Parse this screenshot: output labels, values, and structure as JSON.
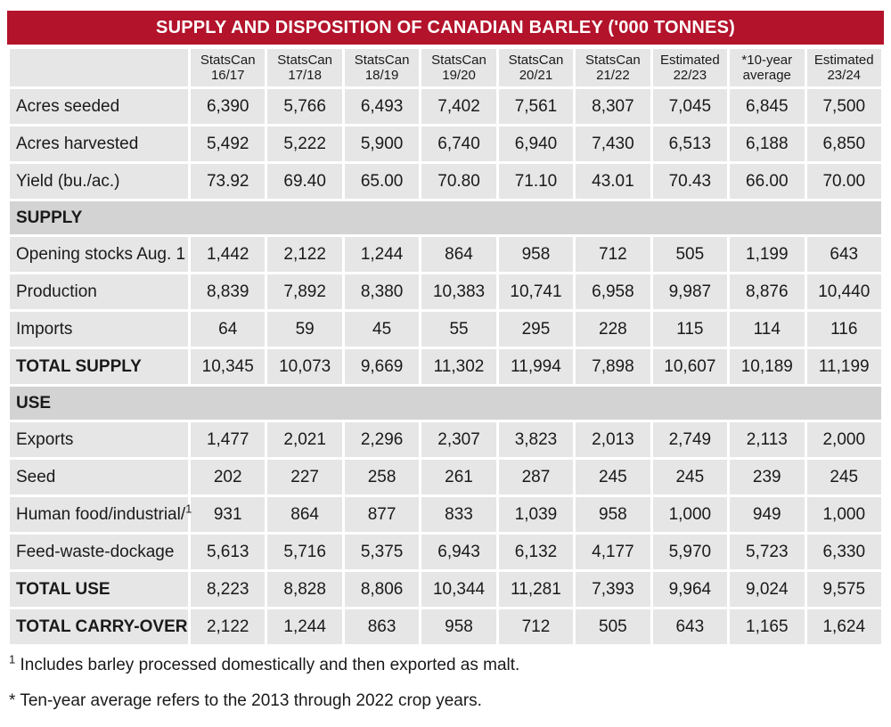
{
  "title": "SUPPLY AND DISPOSITION OF CANADIAN BARLEY ('000 TONNES)",
  "columns": [
    {
      "line1": "StatsCan",
      "line2": "16/17"
    },
    {
      "line1": "StatsCan",
      "line2": "17/18"
    },
    {
      "line1": "StatsCan",
      "line2": "18/19"
    },
    {
      "line1": "StatsCan",
      "line2": "19/20"
    },
    {
      "line1": "StatsCan",
      "line2": "20/21"
    },
    {
      "line1": "StatsCan",
      "line2": "21/22"
    },
    {
      "line1": "Estimated",
      "line2": "22/23"
    },
    {
      "line1": "*10-year",
      "line2": "average"
    },
    {
      "line1": "Estimated",
      "line2": "23/24"
    }
  ],
  "rows": [
    {
      "label": "Acres seeded",
      "values": [
        "6,390",
        "5,766",
        "6,493",
        "7,402",
        "7,561",
        "8,307",
        "7,045",
        "6,845",
        "7,500"
      ]
    },
    {
      "label": "Acres harvested",
      "values": [
        "5,492",
        "5,222",
        "5,900",
        "6,740",
        "6,940",
        "7,430",
        "6,513",
        "6,188",
        "6,850"
      ]
    },
    {
      "label": "Yield (bu./ac.)",
      "values": [
        "73.92",
        "69.40",
        "65.00",
        "70.80",
        "71.10",
        "43.01",
        "70.43",
        "66.00",
        "70.00"
      ]
    },
    {
      "section": "SUPPLY"
    },
    {
      "label": "Opening stocks Aug. 1",
      "values": [
        "1,442",
        "2,122",
        "1,244",
        "864",
        "958",
        "712",
        "505",
        "1,199",
        "643"
      ]
    },
    {
      "label": "Production",
      "values": [
        "8,839",
        "7,892",
        "8,380",
        "10,383",
        "10,741",
        "6,958",
        "9,987",
        "8,876",
        "10,440"
      ]
    },
    {
      "label": "Imports",
      "values": [
        "64",
        "59",
        "45",
        "55",
        "295",
        "228",
        "115",
        "114",
        "116"
      ]
    },
    {
      "label": "TOTAL SUPPLY",
      "total": true,
      "values": [
        "10,345",
        "10,073",
        "9,669",
        "11,302",
        "11,994",
        "7,898",
        "10,607",
        "10,189",
        "11,199"
      ]
    },
    {
      "section": "USE"
    },
    {
      "label": "Exports",
      "values": [
        "1,477",
        "2,021",
        "2,296",
        "2,307",
        "3,823",
        "2,013",
        "2,749",
        "2,113",
        "2,000"
      ]
    },
    {
      "label": "Seed",
      "values": [
        "202",
        "227",
        "258",
        "261",
        "287",
        "245",
        "245",
        "239",
        "245"
      ]
    },
    {
      "label": "Human food/industrial/",
      "footnote": "1",
      "values": [
        "931",
        "864",
        "877",
        "833",
        "1,039",
        "958",
        "1,000",
        "949",
        "1,000"
      ]
    },
    {
      "label": "Feed-waste-dockage",
      "values": [
        "5,613",
        "5,716",
        "5,375",
        "6,943",
        "6,132",
        "4,177",
        "5,970",
        "5,723",
        "6,330"
      ]
    },
    {
      "label": "TOTAL USE",
      "total": true,
      "values": [
        "8,223",
        "8,828",
        "8,806",
        "10,344",
        "11,281",
        "7,393",
        "9,964",
        "9,024",
        "9,575"
      ]
    },
    {
      "label": "TOTAL CARRY-OVER",
      "total": true,
      "values": [
        "2,122",
        "1,244",
        "863",
        "958",
        "712",
        "505",
        "643",
        "1,165",
        "1,624"
      ]
    }
  ],
  "footnotes": [
    {
      "mark": "1",
      "text": "Includes barley processed domestically and then exported as malt."
    },
    {
      "mark": "*",
      "text": "Ten-year average refers to the 2013 through 2022 crop years."
    }
  ]
}
